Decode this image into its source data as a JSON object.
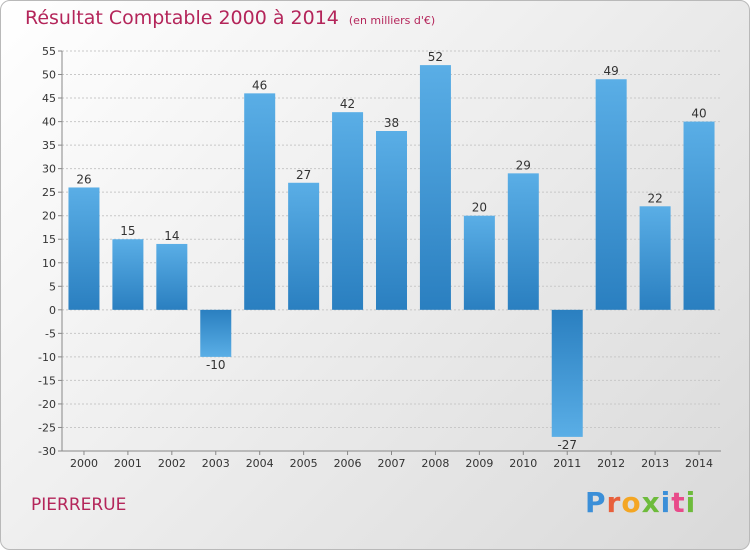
{
  "header": {
    "title": "Résultat Comptable 2000 à 2014",
    "unit": "(en milliers d'€)"
  },
  "footer": {
    "commune": "PIERRERUE",
    "brand": "Proxiti"
  },
  "colors": {
    "title": "#b4255a",
    "bar_light": "#5aaee6",
    "bar_dark": "#2a7fc0",
    "logo_letters": [
      "#3b8fd8",
      "#e8603c",
      "#f4a623",
      "#6dbb3b",
      "#3b8fd8",
      "#e84b8a",
      "#6dbb3b"
    ]
  },
  "chart_data": {
    "type": "bar",
    "title": "Résultat Comptable 2000 à 2014",
    "subtitle": "(en milliers d'€)",
    "categories": [
      "2000",
      "2001",
      "2002",
      "2003",
      "2004",
      "2005",
      "2006",
      "2007",
      "2008",
      "2009",
      "2010",
      "2011",
      "2012",
      "2013",
      "2014"
    ],
    "values": [
      26,
      15,
      14,
      -10,
      46,
      27,
      42,
      38,
      52,
      20,
      29,
      -27,
      49,
      22,
      40
    ],
    "ylim": [
      -30,
      55
    ],
    "yticks": [
      55,
      50,
      45,
      40,
      35,
      30,
      25,
      20,
      15,
      10,
      5,
      0,
      -5,
      -10,
      -15,
      -20,
      -25,
      -30
    ],
    "grid": true,
    "data_labels": true
  }
}
